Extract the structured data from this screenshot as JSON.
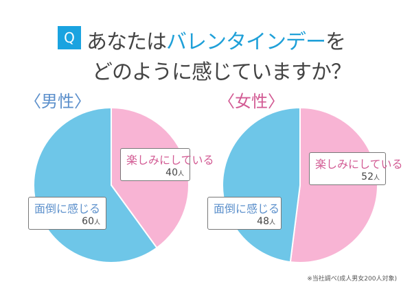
{
  "header": {
    "q_badge": "Q",
    "line1_pre": "あなたは",
    "line1_highlight": "バレンタインデー",
    "line1_post": "を",
    "line2": "どのように感じていますか？"
  },
  "colors": {
    "pink": "#f8b4d4",
    "blue": "#6ec6e8",
    "pink_text": "#d25a93",
    "blue_text": "#5b8fcb",
    "accent": "#1aa3e0"
  },
  "chart_data": [
    {
      "type": "pie",
      "title": "〈男性〉",
      "unit": "人",
      "slices": [
        {
          "label": "楽しみにしている",
          "value": 40,
          "color": "#f8b4d4"
        },
        {
          "label": "面倒に感じる",
          "value": 60,
          "color": "#6ec6e8"
        }
      ]
    },
    {
      "type": "pie",
      "title": "〈女性〉",
      "unit": "人",
      "slices": [
        {
          "label": "楽しみにしている",
          "value": 52,
          "color": "#f8b4d4"
        },
        {
          "label": "面倒に感じる",
          "value": 48,
          "color": "#6ec6e8"
        }
      ]
    }
  ],
  "footnote": "※当社調べ(成人男女200人対象)"
}
